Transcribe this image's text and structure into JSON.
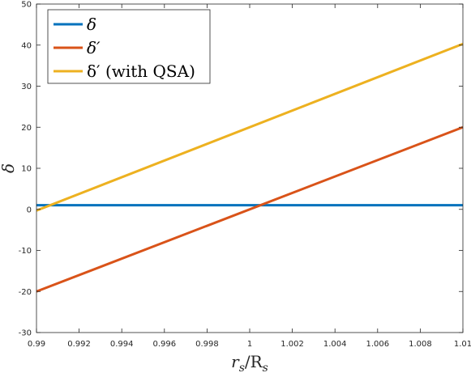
{
  "chart_data": {
    "type": "line",
    "title": "",
    "xlabel": "r_s/R_s",
    "ylabel": "δ",
    "xlim": [
      0.99,
      1.01
    ],
    "ylim": [
      -30,
      50
    ],
    "xticks": [
      "0.99",
      "0.992",
      "0.994",
      "0.996",
      "0.998",
      "1",
      "1.002",
      "1.004",
      "1.006",
      "1.008",
      "1.01"
    ],
    "yticks": [
      "-30",
      "-20",
      "-10",
      "0",
      "10",
      "20",
      "30",
      "40",
      "50"
    ],
    "grid": false,
    "legend_position": "top-left",
    "series": [
      {
        "name": "δ",
        "color": "#0072BD",
        "x": [
          0.99,
          1.01
        ],
        "y": [
          1,
          1
        ]
      },
      {
        "name": "δ′",
        "color": "#D95319",
        "x": [
          0.99,
          1.01
        ],
        "y": [
          -20,
          20
        ]
      },
      {
        "name": "δ′ (with QSA)",
        "color": "#EDB120",
        "x": [
          0.99,
          1.01
        ],
        "y": [
          -0.3,
          40.3
        ]
      }
    ]
  }
}
